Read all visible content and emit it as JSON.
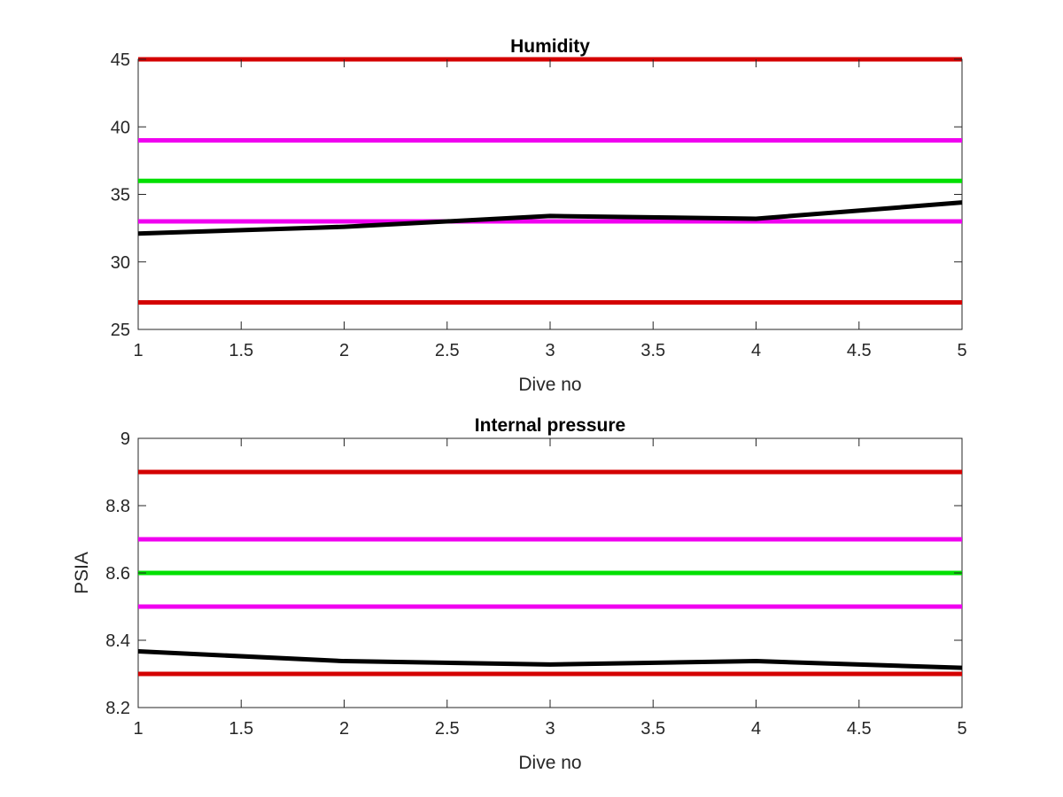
{
  "chart_data": [
    {
      "type": "line",
      "title": "Humidity",
      "xlabel": "Dive no",
      "ylabel": "",
      "xlim": [
        1,
        5
      ],
      "ylim": [
        25,
        45
      ],
      "xticks": [
        1,
        1.5,
        2,
        2.5,
        3,
        3.5,
        4,
        4.5,
        5
      ],
      "xtick_labels": [
        "1",
        "1.5",
        "2",
        "2.5",
        "3",
        "3.5",
        "4",
        "4.5",
        "5"
      ],
      "yticks": [
        25,
        30,
        35,
        40,
        45
      ],
      "ytick_labels": [
        "25",
        "30",
        "35",
        "40",
        "45"
      ],
      "grid": false,
      "reference_lines": [
        {
          "y": 45,
          "color": "#d40000"
        },
        {
          "y": 39,
          "color": "#f000f0"
        },
        {
          "y": 36,
          "color": "#00e000"
        },
        {
          "y": 33,
          "color": "#f000f0"
        },
        {
          "y": 27,
          "color": "#d40000"
        }
      ],
      "series": [
        {
          "color": "#000000",
          "x": [
            1,
            2,
            3,
            4,
            5
          ],
          "values": [
            32.1,
            32.6,
            33.4,
            33.2,
            34.4
          ]
        }
      ]
    },
    {
      "type": "line",
      "title": "Internal pressure",
      "xlabel": "Dive no",
      "ylabel": "PSIA",
      "xlim": [
        1,
        5
      ],
      "ylim": [
        8.2,
        9
      ],
      "xticks": [
        1,
        1.5,
        2,
        2.5,
        3,
        3.5,
        4,
        4.5,
        5
      ],
      "xtick_labels": [
        "1",
        "1.5",
        "2",
        "2.5",
        "3",
        "3.5",
        "4",
        "4.5",
        "5"
      ],
      "yticks": [
        8.2,
        8.4,
        8.6,
        8.8,
        9
      ],
      "ytick_labels": [
        "8.2",
        "8.4",
        "8.6",
        "8.8",
        "9"
      ],
      "grid": false,
      "reference_lines": [
        {
          "y": 8.9,
          "color": "#d40000"
        },
        {
          "y": 8.7,
          "color": "#f000f0"
        },
        {
          "y": 8.6,
          "color": "#00e000"
        },
        {
          "y": 8.5,
          "color": "#f000f0"
        },
        {
          "y": 8.3,
          "color": "#d40000"
        }
      ],
      "series": [
        {
          "color": "#000000",
          "x": [
            1,
            2,
            3,
            4,
            5
          ],
          "values": [
            8.367,
            8.338,
            8.328,
            8.338,
            8.318
          ]
        }
      ]
    }
  ]
}
